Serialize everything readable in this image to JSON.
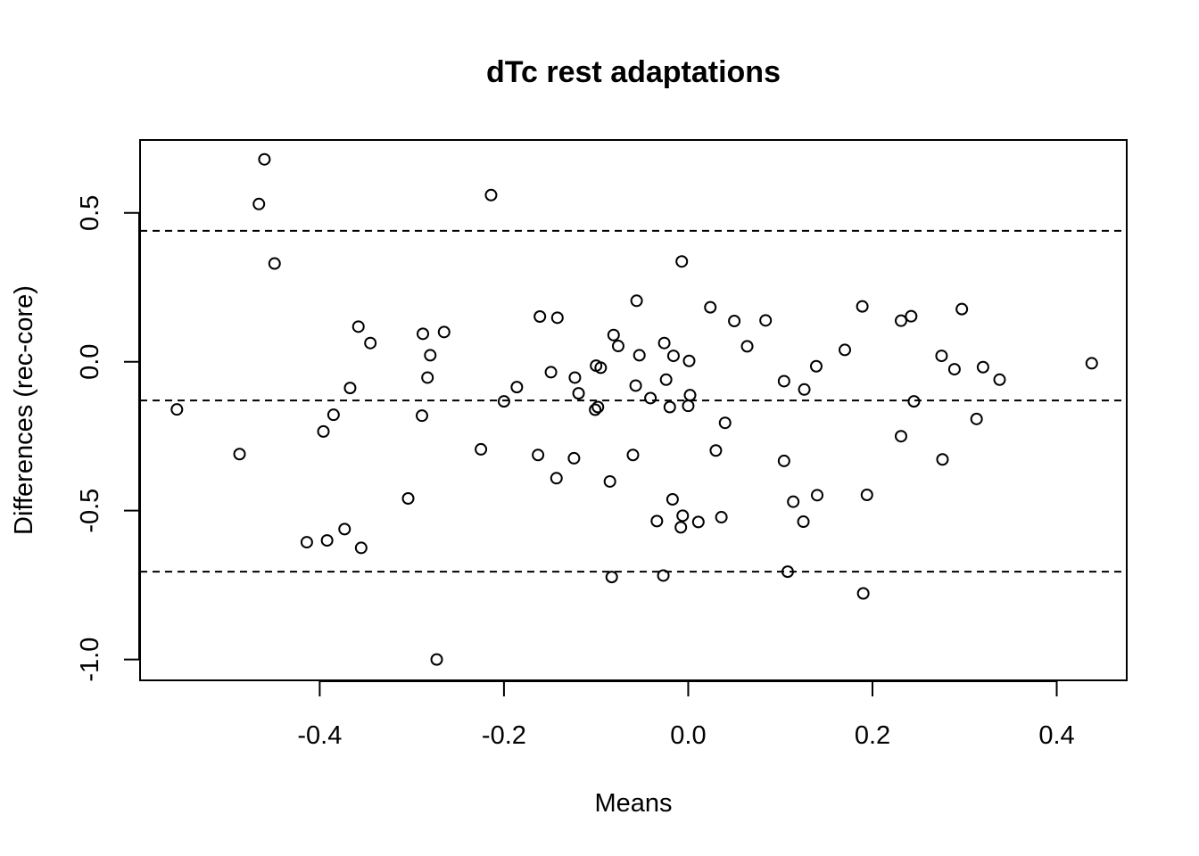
{
  "chart_data": {
    "type": "scatter",
    "title": "dTc rest adaptations",
    "xlabel": "Means",
    "ylabel": "Differences (rec-core)",
    "xlim": [
      -0.595,
      0.476
    ],
    "ylim": [
      -1.07,
      0.745
    ],
    "x_ticks": [
      -0.4,
      -0.2,
      0.0,
      0.2,
      0.4
    ],
    "x_tick_labels": [
      "-0.4",
      "-0.2",
      "0.0",
      "0.2",
      "0.4"
    ],
    "y_ticks": [
      -1.0,
      -0.5,
      0.0,
      0.5
    ],
    "y_tick_labels": [
      "-1.0",
      "-0.5",
      "0.0",
      "0.5"
    ],
    "reference_lines": [
      0.44,
      -0.13,
      -0.705
    ],
    "grid": false,
    "points": [
      {
        "x": -0.555,
        "y": -0.16
      },
      {
        "x": -0.487,
        "y": -0.31
      },
      {
        "x": -0.46,
        "y": 0.68
      },
      {
        "x": -0.466,
        "y": 0.53
      },
      {
        "x": -0.449,
        "y": 0.33
      },
      {
        "x": -0.414,
        "y": -0.606
      },
      {
        "x": -0.392,
        "y": -0.6
      },
      {
        "x": -0.396,
        "y": -0.234
      },
      {
        "x": -0.385,
        "y": -0.178
      },
      {
        "x": -0.373,
        "y": -0.562
      },
      {
        "x": -0.367,
        "y": -0.088
      },
      {
        "x": -0.358,
        "y": 0.118
      },
      {
        "x": -0.355,
        "y": -0.625
      },
      {
        "x": -0.345,
        "y": 0.063
      },
      {
        "x": -0.304,
        "y": -0.459
      },
      {
        "x": -0.288,
        "y": 0.094
      },
      {
        "x": -0.283,
        "y": -0.053
      },
      {
        "x": -0.28,
        "y": 0.022
      },
      {
        "x": -0.289,
        "y": -0.181
      },
      {
        "x": -0.273,
        "y": -1.0
      },
      {
        "x": -0.265,
        "y": 0.1
      },
      {
        "x": -0.225,
        "y": -0.294
      },
      {
        "x": -0.214,
        "y": 0.56
      },
      {
        "x": -0.2,
        "y": -0.133
      },
      {
        "x": -0.186,
        "y": -0.085
      },
      {
        "x": -0.163,
        "y": -0.313
      },
      {
        "x": -0.161,
        "y": 0.152
      },
      {
        "x": -0.149,
        "y": -0.035
      },
      {
        "x": -0.143,
        "y": -0.391
      },
      {
        "x": -0.142,
        "y": 0.148
      },
      {
        "x": -0.124,
        "y": -0.324
      },
      {
        "x": -0.123,
        "y": -0.053
      },
      {
        "x": -0.119,
        "y": -0.106
      },
      {
        "x": -0.101,
        "y": -0.161
      },
      {
        "x": -0.098,
        "y": -0.152
      },
      {
        "x": -0.1,
        "y": -0.013
      },
      {
        "x": -0.095,
        "y": -0.02
      },
      {
        "x": -0.085,
        "y": -0.402
      },
      {
        "x": -0.083,
        "y": -0.723
      },
      {
        "x": -0.081,
        "y": 0.09
      },
      {
        "x": -0.076,
        "y": 0.053
      },
      {
        "x": -0.06,
        "y": -0.313
      },
      {
        "x": -0.057,
        "y": -0.08
      },
      {
        "x": -0.056,
        "y": 0.205
      },
      {
        "x": -0.053,
        "y": 0.022
      },
      {
        "x": -0.041,
        "y": -0.122
      },
      {
        "x": -0.034,
        "y": -0.535
      },
      {
        "x": -0.027,
        "y": -0.718
      },
      {
        "x": -0.026,
        "y": 0.063
      },
      {
        "x": -0.024,
        "y": -0.06
      },
      {
        "x": -0.02,
        "y": -0.152
      },
      {
        "x": -0.017,
        "y": -0.462
      },
      {
        "x": -0.016,
        "y": 0.02
      },
      {
        "x": -0.008,
        "y": -0.556
      },
      {
        "x": -0.006,
        "y": -0.517
      },
      {
        "x": -0.007,
        "y": 0.337
      },
      {
        "x": 0.0,
        "y": -0.148
      },
      {
        "x": 0.001,
        "y": 0.003
      },
      {
        "x": 0.002,
        "y": -0.112
      },
      {
        "x": 0.011,
        "y": -0.538
      },
      {
        "x": 0.024,
        "y": 0.183
      },
      {
        "x": 0.03,
        "y": -0.298
      },
      {
        "x": 0.036,
        "y": -0.522
      },
      {
        "x": 0.04,
        "y": -0.205
      },
      {
        "x": 0.05,
        "y": 0.137
      },
      {
        "x": 0.064,
        "y": 0.052
      },
      {
        "x": 0.084,
        "y": 0.139
      },
      {
        "x": 0.104,
        "y": -0.065
      },
      {
        "x": 0.104,
        "y": -0.333
      },
      {
        "x": 0.108,
        "y": -0.705
      },
      {
        "x": 0.114,
        "y": -0.47
      },
      {
        "x": 0.125,
        "y": -0.537
      },
      {
        "x": 0.126,
        "y": -0.093
      },
      {
        "x": 0.139,
        "y": -0.015
      },
      {
        "x": 0.14,
        "y": -0.448
      },
      {
        "x": 0.17,
        "y": 0.04
      },
      {
        "x": 0.189,
        "y": 0.186
      },
      {
        "x": 0.19,
        "y": -0.778
      },
      {
        "x": 0.194,
        "y": -0.447
      },
      {
        "x": 0.231,
        "y": 0.138
      },
      {
        "x": 0.231,
        "y": -0.25
      },
      {
        "x": 0.242,
        "y": 0.153
      },
      {
        "x": 0.245,
        "y": -0.133
      },
      {
        "x": 0.275,
        "y": 0.02
      },
      {
        "x": 0.276,
        "y": -0.328
      },
      {
        "x": 0.289,
        "y": -0.025
      },
      {
        "x": 0.297,
        "y": 0.177
      },
      {
        "x": 0.313,
        "y": -0.192
      },
      {
        "x": 0.32,
        "y": -0.018
      },
      {
        "x": 0.338,
        "y": -0.06
      },
      {
        "x": 0.438,
        "y": -0.005
      }
    ]
  }
}
